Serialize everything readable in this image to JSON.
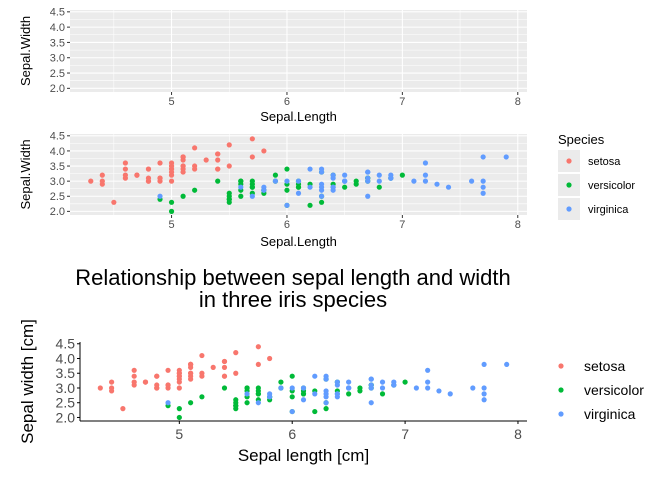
{
  "chart_data": [
    {
      "type": "scatter",
      "panel": "empty-grey-grid",
      "xlabel": "Sepal.Length",
      "ylabel": "Sepal.Width",
      "xlim": [
        4.3,
        8.0
      ],
      "ylim": [
        2.0,
        4.5
      ],
      "xticks": [
        "5",
        "6",
        "7",
        "8"
      ],
      "yticks": [
        "2.0",
        "2.5",
        "3.0",
        "3.5",
        "4.0",
        "4.5"
      ],
      "grid": true,
      "legend": "none",
      "points": []
    },
    {
      "type": "scatter",
      "panel": "grey-grid-with-legend",
      "xlabel": "Sepal.Length",
      "ylabel": "Sepal.Width",
      "xlim": [
        4.3,
        8.0
      ],
      "ylim": [
        2.0,
        4.5
      ],
      "xticks": [
        "5",
        "6",
        "7",
        "8"
      ],
      "yticks": [
        "2.0",
        "2.5",
        "3.0",
        "3.5",
        "4.0",
        "4.5"
      ],
      "grid": true,
      "legend_title": "Species",
      "legend": "right",
      "series_ref": "iris"
    },
    {
      "type": "scatter",
      "panel": "classic",
      "title": "Relationship between sepal length and width\nin three iris species",
      "xlabel": "Sepal length [cm]",
      "ylabel": "Sepal width [cm]",
      "xlim": [
        4.3,
        8.0
      ],
      "ylim": [
        2.0,
        4.5
      ],
      "xticks": [
        "5",
        "6",
        "7",
        "8"
      ],
      "yticks": [
        "2.0",
        "2.5",
        "3.0",
        "3.5",
        "4.0",
        "4.5"
      ],
      "grid": false,
      "legend_title": "",
      "legend": "right",
      "series_ref": "iris"
    }
  ],
  "iris": {
    "series": [
      {
        "name": "setosa",
        "color": "#F8766D",
        "points": [
          [
            5.1,
            3.5
          ],
          [
            4.9,
            3.0
          ],
          [
            4.7,
            3.2
          ],
          [
            4.6,
            3.1
          ],
          [
            5.0,
            3.6
          ],
          [
            5.4,
            3.9
          ],
          [
            4.6,
            3.4
          ],
          [
            5.0,
            3.4
          ],
          [
            4.4,
            2.9
          ],
          [
            4.9,
            3.1
          ],
          [
            5.4,
            3.7
          ],
          [
            4.8,
            3.4
          ],
          [
            4.8,
            3.0
          ],
          [
            4.3,
            3.0
          ],
          [
            5.8,
            4.0
          ],
          [
            5.7,
            4.4
          ],
          [
            5.4,
            3.9
          ],
          [
            5.1,
            3.5
          ],
          [
            5.7,
            3.8
          ],
          [
            5.1,
            3.8
          ],
          [
            5.4,
            3.4
          ],
          [
            5.1,
            3.7
          ],
          [
            4.6,
            3.6
          ],
          [
            5.1,
            3.3
          ],
          [
            4.8,
            3.4
          ],
          [
            5.0,
            3.0
          ],
          [
            5.0,
            3.4
          ],
          [
            5.2,
            3.5
          ],
          [
            5.2,
            3.4
          ],
          [
            4.7,
            3.2
          ],
          [
            4.8,
            3.1
          ],
          [
            5.4,
            3.4
          ],
          [
            5.2,
            4.1
          ],
          [
            5.5,
            4.2
          ],
          [
            4.9,
            3.1
          ],
          [
            5.0,
            3.2
          ],
          [
            5.5,
            3.5
          ],
          [
            4.9,
            3.6
          ],
          [
            4.4,
            3.0
          ],
          [
            5.1,
            3.4
          ],
          [
            5.0,
            3.5
          ],
          [
            4.5,
            2.3
          ],
          [
            4.4,
            3.2
          ],
          [
            5.0,
            3.5
          ],
          [
            5.1,
            3.8
          ],
          [
            4.8,
            3.0
          ],
          [
            5.1,
            3.8
          ],
          [
            4.6,
            3.2
          ],
          [
            5.3,
            3.7
          ],
          [
            5.0,
            3.3
          ]
        ]
      },
      {
        "name": "versicolor",
        "color": "#00BA38",
        "points": [
          [
            7.0,
            3.2
          ],
          [
            6.4,
            3.2
          ],
          [
            6.9,
            3.1
          ],
          [
            5.5,
            2.3
          ],
          [
            6.5,
            2.8
          ],
          [
            5.7,
            2.8
          ],
          [
            6.3,
            3.3
          ],
          [
            4.9,
            2.4
          ],
          [
            6.6,
            2.9
          ],
          [
            5.2,
            2.7
          ],
          [
            5.0,
            2.0
          ],
          [
            5.9,
            3.0
          ],
          [
            6.0,
            2.2
          ],
          [
            6.1,
            2.9
          ],
          [
            5.6,
            2.9
          ],
          [
            6.7,
            3.1
          ],
          [
            5.6,
            3.0
          ],
          [
            5.8,
            2.7
          ],
          [
            6.2,
            2.2
          ],
          [
            5.6,
            2.5
          ],
          [
            5.9,
            3.2
          ],
          [
            6.1,
            2.8
          ],
          [
            6.3,
            2.5
          ],
          [
            6.1,
            2.8
          ],
          [
            6.4,
            2.9
          ],
          [
            6.6,
            3.0
          ],
          [
            6.8,
            2.8
          ],
          [
            6.7,
            3.0
          ],
          [
            6.0,
            2.9
          ],
          [
            5.7,
            2.6
          ],
          [
            5.5,
            2.4
          ],
          [
            5.5,
            2.4
          ],
          [
            5.8,
            2.7
          ],
          [
            6.0,
            2.7
          ],
          [
            5.4,
            3.0
          ],
          [
            6.0,
            3.4
          ],
          [
            6.7,
            3.1
          ],
          [
            6.3,
            2.3
          ],
          [
            5.6,
            3.0
          ],
          [
            5.5,
            2.5
          ],
          [
            5.5,
            2.6
          ],
          [
            6.1,
            3.0
          ],
          [
            5.8,
            2.6
          ],
          [
            5.0,
            2.3
          ],
          [
            5.6,
            2.7
          ],
          [
            5.7,
            3.0
          ],
          [
            5.7,
            2.9
          ],
          [
            6.2,
            2.9
          ],
          [
            5.1,
            2.5
          ],
          [
            5.7,
            2.8
          ]
        ]
      },
      {
        "name": "virginica",
        "color": "#619CFF",
        "points": [
          [
            6.3,
            3.3
          ],
          [
            5.8,
            2.7
          ],
          [
            7.1,
            3.0
          ],
          [
            6.3,
            2.9
          ],
          [
            6.5,
            3.0
          ],
          [
            7.6,
            3.0
          ],
          [
            4.9,
            2.5
          ],
          [
            7.3,
            2.9
          ],
          [
            6.7,
            2.5
          ],
          [
            7.2,
            3.6
          ],
          [
            6.5,
            3.2
          ],
          [
            6.4,
            2.7
          ],
          [
            6.8,
            3.0
          ],
          [
            5.7,
            2.5
          ],
          [
            5.8,
            2.8
          ],
          [
            6.4,
            3.2
          ],
          [
            6.5,
            3.0
          ],
          [
            7.7,
            3.8
          ],
          [
            7.7,
            2.6
          ],
          [
            6.0,
            2.2
          ],
          [
            6.9,
            3.2
          ],
          [
            5.6,
            2.8
          ],
          [
            7.7,
            2.8
          ],
          [
            6.3,
            2.7
          ],
          [
            6.7,
            3.3
          ],
          [
            7.2,
            3.2
          ],
          [
            6.2,
            2.8
          ],
          [
            6.1,
            3.0
          ],
          [
            6.4,
            2.8
          ],
          [
            7.2,
            3.0
          ],
          [
            7.4,
            2.8
          ],
          [
            7.9,
            3.8
          ],
          [
            6.4,
            2.8
          ],
          [
            6.3,
            2.8
          ],
          [
            6.1,
            2.6
          ],
          [
            7.7,
            3.0
          ],
          [
            6.3,
            3.4
          ],
          [
            6.4,
            3.1
          ],
          [
            6.0,
            3.0
          ],
          [
            6.9,
            3.1
          ],
          [
            6.7,
            3.1
          ],
          [
            6.9,
            3.1
          ],
          [
            5.8,
            2.7
          ],
          [
            6.8,
            3.2
          ],
          [
            6.7,
            3.3
          ],
          [
            6.7,
            3.0
          ],
          [
            6.3,
            2.5
          ],
          [
            6.5,
            3.0
          ],
          [
            6.2,
            3.4
          ],
          [
            5.9,
            3.0
          ]
        ]
      }
    ]
  }
}
